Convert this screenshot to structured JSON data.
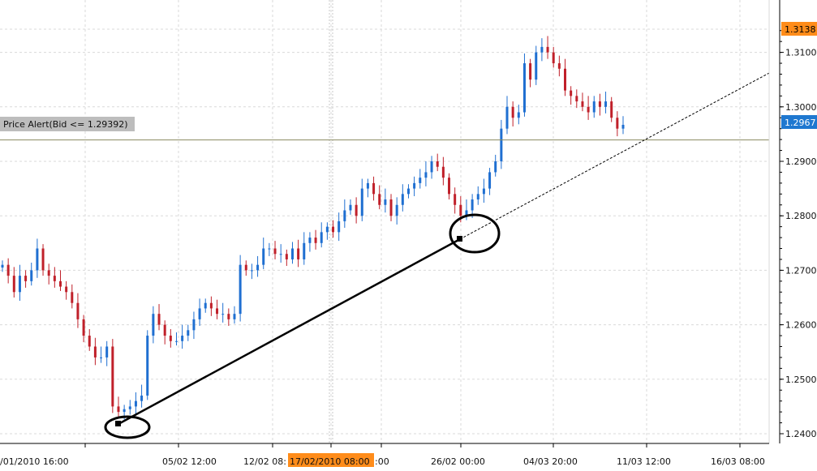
{
  "chart_data": {
    "type": "candlestick",
    "title": "",
    "xlabel": "",
    "ylabel": "",
    "ylim": [
      1.2378,
      1.3175
    ],
    "grid": true,
    "y_ticks": [
      "1.2400",
      "1.2500",
      "1.2600",
      "1.2700",
      "1.2800",
      "1.2900",
      "1.3000",
      "1.3100"
    ],
    "x_ticks": [
      "/01/2010 16:00",
      "05/02 12:00",
      "12/02 08:",
      "17/02/2010 08:00",
      ":00",
      "26/02 00:00",
      "04/03 20:00",
      "11/03 12:00",
      "16/03 08:00"
    ],
    "last_price_label": "1.2967",
    "high_price_label": "1.3138",
    "price_alert": {
      "label": "Price Alert(Bid <= 1.29392)",
      "level": 1.29392
    },
    "trendline": {
      "from": [
        1.2417,
        "02/02"
      ],
      "to": [
        1.2755,
        "25/02"
      ],
      "extension_to": [
        1.3064,
        "17/03"
      ]
    },
    "colors": {
      "up": "#1f6fd1",
      "down": "#c0202a",
      "alert_line": "#8a8a60",
      "cursor_label": "#ff8c1a",
      "last_label": "#1f78d0"
    },
    "close_series": [
      1.271,
      1.269,
      1.266,
      1.269,
      1.268,
      1.27,
      1.274,
      1.27,
      1.269,
      1.268,
      1.267,
      1.266,
      1.264,
      1.261,
      1.258,
      1.256,
      1.254,
      1.254,
      1.256,
      1.245,
      1.244,
      1.2445,
      1.245,
      1.246,
      1.247,
      1.258,
      1.262,
      1.26,
      1.258,
      1.257,
      1.257,
      1.258,
      1.259,
      1.261,
      1.263,
      1.264,
      1.263,
      1.262,
      1.262,
      1.261,
      1.262,
      1.271,
      1.27,
      1.27,
      1.271,
      1.274,
      1.274,
      1.273,
      1.273,
      1.272,
      1.274,
      1.272,
      1.275,
      1.276,
      1.275,
      1.277,
      1.278,
      1.277,
      1.279,
      1.281,
      1.282,
      1.28,
      1.285,
      1.286,
      1.284,
      1.282,
      1.283,
      1.28,
      1.282,
      1.284,
      1.285,
      1.286,
      1.287,
      1.288,
      1.29,
      1.289,
      1.287,
      1.284,
      1.282,
      1.28,
      1.281,
      1.283,
      1.284,
      1.285,
      1.288,
      1.29,
      1.296,
      1.3,
      1.298,
      1.299,
      1.308,
      1.305,
      1.31,
      1.311,
      1.31,
      1.308,
      1.307,
      1.303,
      1.302,
      1.301,
      1.3,
      1.299,
      1.301,
      1.3,
      1.301,
      1.298,
      1.296,
      1.2967
    ]
  }
}
